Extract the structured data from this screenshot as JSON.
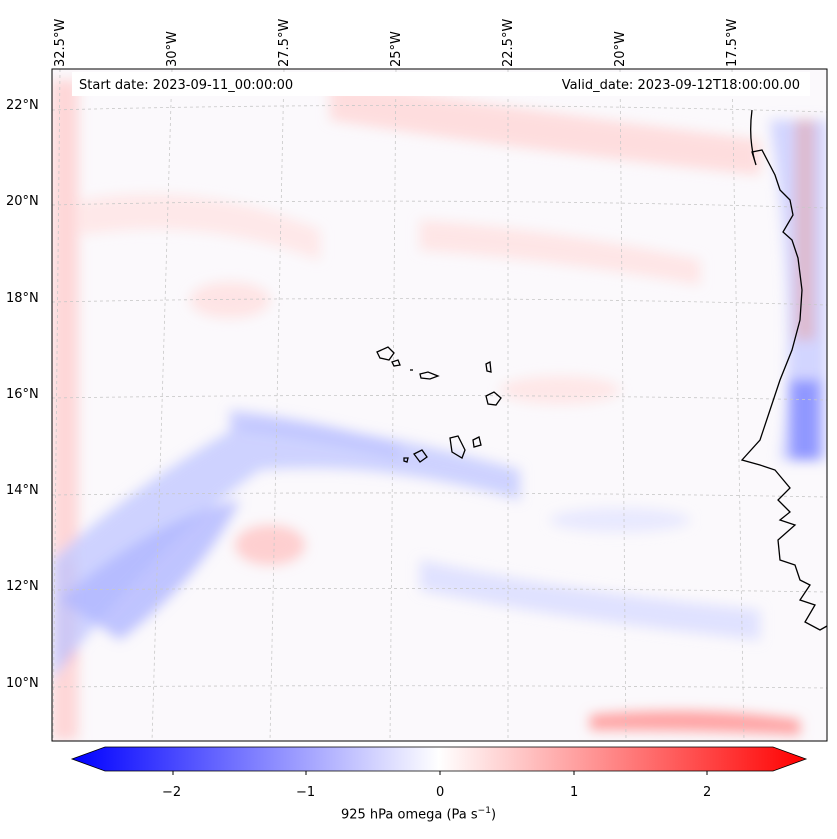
{
  "header": {
    "start_date": "Start date: 2023-09-11_00:00:00",
    "valid_date": "Valid_date: 2023-09-12T18:00:00.00"
  },
  "longitude_labels": [
    "32.5°W",
    "30°W",
    "27.5°W",
    "25°W",
    "22.5°W",
    "20°W",
    "17.5°W"
  ],
  "latitude_labels": [
    "22°N",
    "20°N",
    "18°N",
    "16°N",
    "14°N",
    "12°N",
    "10°N"
  ],
  "colorbar": {
    "tick_labels": [
      "−2",
      "−1",
      "0",
      "1",
      "2"
    ],
    "title_prefix": "925 hPa omega (Pa s",
    "title_exp": "−1",
    "title_suffix": ")",
    "vmin": -2.6,
    "vmax": 2.6,
    "low_color": "#0000ff",
    "mid_color": "#ffffff",
    "high_color": "#ff0000"
  }
}
